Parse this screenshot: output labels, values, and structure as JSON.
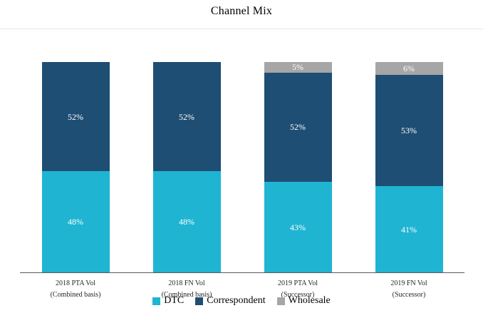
{
  "chart_data": {
    "type": "bar",
    "stacked": true,
    "title": "Channel Mix",
    "categories": [
      {
        "line1": "2018 PTA Vol",
        "line2": "(Combined basis)"
      },
      {
        "line1": "2018 FN  Vol",
        "line2": "(Combined basis)"
      },
      {
        "line1": "2019 PTA Vol",
        "line2": "(Successor)"
      },
      {
        "line1": "2019 FN  Vol",
        "line2": "(Successor)"
      }
    ],
    "series": [
      {
        "name": "DTC",
        "color": "#1fb4d2",
        "values": [
          48,
          48,
          43,
          41
        ]
      },
      {
        "name": "Correspondent",
        "color": "#1f4e74",
        "values": [
          52,
          52,
          52,
          53
        ]
      },
      {
        "name": "Wholesale",
        "color": "#a6a6a6",
        "values": [
          0,
          0,
          5,
          6
        ]
      }
    ],
    "value_suffix": "%",
    "ylim": [
      0,
      100
    ],
    "grid": false,
    "legend_position": "bottom"
  }
}
